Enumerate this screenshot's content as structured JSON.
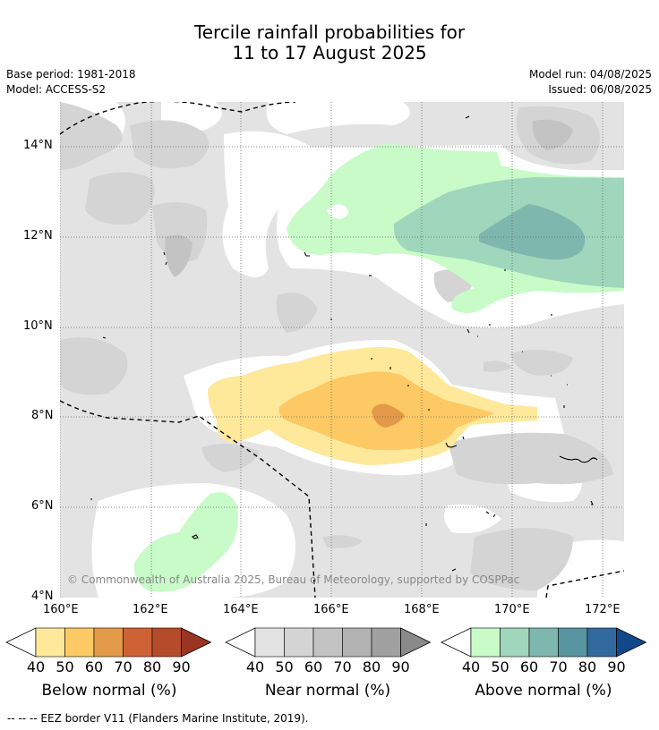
{
  "header": {
    "title_line1": "Tercile rainfall probabilities for",
    "title_line2": "11 to 17 August 2025",
    "base_period": "Base period: 1981-2018",
    "model": "Model: ACCESS-S2",
    "model_run": "Model run: 04/08/2025",
    "issued": "Issued: 06/08/2025"
  },
  "map": {
    "lon_ticks": [
      "160°E",
      "162°E",
      "164°E",
      "166°E",
      "168°E",
      "170°E",
      "172°E"
    ],
    "lat_ticks": [
      "14°N",
      "12°N",
      "10°N",
      "8°N",
      "6°N",
      "4°N"
    ],
    "credit": "© Commonwealth of Australia 2025, Bureau of Meteorology, supported by COSPPac"
  },
  "colorbars": [
    {
      "label": "Below normal (%)",
      "ticks": [
        "40",
        "50",
        "60",
        "70",
        "80",
        "90"
      ],
      "colors": [
        "#ffffff",
        "#fee89a",
        "#fcc964",
        "#e39a48",
        "#cf6234",
        "#b44b2a",
        "#993522"
      ]
    },
    {
      "label": "Near normal (%)",
      "ticks": [
        "40",
        "50",
        "60",
        "70",
        "80",
        "90"
      ],
      "colors": [
        "#ffffff",
        "#e3e3e3",
        "#d4d4d4",
        "#c3c3c3",
        "#b3b3b3",
        "#a0a0a0",
        "#8a8a8a"
      ]
    },
    {
      "label": "Above normal (%)",
      "ticks": [
        "40",
        "50",
        "60",
        "70",
        "80",
        "90"
      ],
      "colors": [
        "#ffffff",
        "#c8fbc8",
        "#a0d6bb",
        "#7eb7ae",
        "#5795a0",
        "#326aa0",
        "#10488a"
      ]
    }
  ],
  "footnote": "--  --  -- EEZ border V11 (Flanders Marine Institute, 2019)."
}
